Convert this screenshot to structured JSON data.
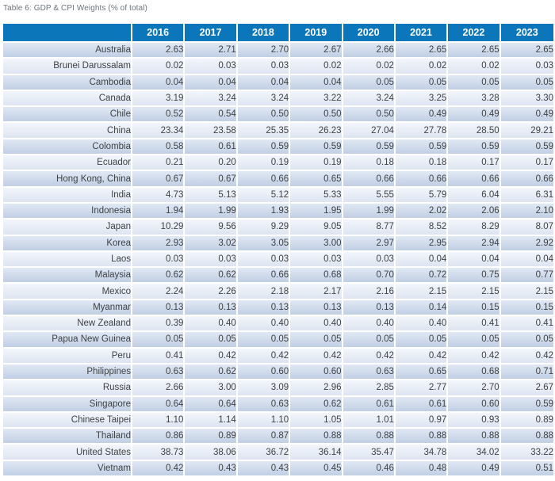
{
  "chart_data": {
    "type": "table",
    "title": "Table 6: GDP & CPI Weights (% of total)",
    "columns": [
      "2016",
      "2017",
      "2018",
      "2019",
      "2020",
      "2021",
      "2022",
      "2023"
    ],
    "rows": [
      {
        "label": "Australia",
        "values": [
          "2.63",
          "2.71",
          "2.70",
          "2.67",
          "2.66",
          "2.65",
          "2.65",
          "2.65"
        ]
      },
      {
        "label": "Brunei Darussalam",
        "values": [
          "0.02",
          "0.03",
          "0.03",
          "0.02",
          "0.02",
          "0.02",
          "0.02",
          "0.03"
        ]
      },
      {
        "label": "Cambodia",
        "values": [
          "0.04",
          "0.04",
          "0.04",
          "0.04",
          "0.05",
          "0.05",
          "0.05",
          "0.05"
        ]
      },
      {
        "label": "Canada",
        "values": [
          "3.19",
          "3.24",
          "3.24",
          "3.22",
          "3.24",
          "3.25",
          "3.28",
          "3.30"
        ]
      },
      {
        "label": "Chile",
        "values": [
          "0.52",
          "0.54",
          "0.50",
          "0.50",
          "0.50",
          "0.49",
          "0.49",
          "0.49"
        ]
      },
      {
        "label": "China",
        "values": [
          "23.34",
          "23.58",
          "25.35",
          "26.23",
          "27.04",
          "27.78",
          "28.50",
          "29.21"
        ]
      },
      {
        "label": "Colombia",
        "values": [
          "0.58",
          "0.61",
          "0.59",
          "0.59",
          "0.59",
          "0.59",
          "0.59",
          "0.59"
        ]
      },
      {
        "label": "Ecuador",
        "values": [
          "0.21",
          "0.20",
          "0.19",
          "0.19",
          "0.18",
          "0.18",
          "0.17",
          "0.17"
        ]
      },
      {
        "label": "Hong Kong, China",
        "values": [
          "0.67",
          "0.67",
          "0.66",
          "0.65",
          "0.66",
          "0.66",
          "0.66",
          "0.66"
        ]
      },
      {
        "label": "India",
        "values": [
          "4.73",
          "5.13",
          "5.12",
          "5.33",
          "5.55",
          "5.79",
          "6.04",
          "6.31"
        ]
      },
      {
        "label": "Indonesia",
        "values": [
          "1.94",
          "1.99",
          "1.93",
          "1.95",
          "1.99",
          "2.02",
          "2.06",
          "2.10"
        ]
      },
      {
        "label": "Japan",
        "values": [
          "10.29",
          "9.56",
          "9.29",
          "9.05",
          "8.77",
          "8.52",
          "8.29",
          "8.07"
        ]
      },
      {
        "label": "Korea",
        "values": [
          "2.93",
          "3.02",
          "3.05",
          "3.00",
          "2.97",
          "2.95",
          "2.94",
          "2.92"
        ]
      },
      {
        "label": "Laos",
        "values": [
          "0.03",
          "0.03",
          "0.03",
          "0.03",
          "0.03",
          "0.04",
          "0.04",
          "0.04"
        ]
      },
      {
        "label": "Malaysia",
        "values": [
          "0.62",
          "0.62",
          "0.66",
          "0.68",
          "0.70",
          "0.72",
          "0.75",
          "0.77"
        ]
      },
      {
        "label": "Mexico",
        "values": [
          "2.24",
          "2.26",
          "2.18",
          "2.17",
          "2.16",
          "2.15",
          "2.15",
          "2.15"
        ]
      },
      {
        "label": "Myanmar",
        "values": [
          "0.13",
          "0.13",
          "0.13",
          "0.13",
          "0.13",
          "0.14",
          "0.15",
          "0.15"
        ]
      },
      {
        "label": "New Zealand",
        "values": [
          "0.39",
          "0.40",
          "0.40",
          "0.40",
          "0.40",
          "0.40",
          "0.41",
          "0.41"
        ]
      },
      {
        "label": "Papua New Guinea",
        "values": [
          "0.05",
          "0.05",
          "0.05",
          "0.05",
          "0.05",
          "0.05",
          "0.05",
          "0.05"
        ]
      },
      {
        "label": "Peru",
        "values": [
          "0.41",
          "0.42",
          "0.42",
          "0.42",
          "0.42",
          "0.42",
          "0.42",
          "0.42"
        ]
      },
      {
        "label": "Philippines",
        "values": [
          "0.63",
          "0.62",
          "0.60",
          "0.60",
          "0.63",
          "0.65",
          "0.68",
          "0.71"
        ]
      },
      {
        "label": "Russia",
        "values": [
          "2.66",
          "3.00",
          "3.09",
          "2.96",
          "2.85",
          "2.77",
          "2.70",
          "2.67"
        ]
      },
      {
        "label": "Singapore",
        "values": [
          "0.64",
          "0.64",
          "0.63",
          "0.62",
          "0.61",
          "0.61",
          "0.60",
          "0.59"
        ]
      },
      {
        "label": "Chinese Taipei",
        "values": [
          "1.10",
          "1.14",
          "1.10",
          "1.05",
          "1.01",
          "0.97",
          "0.93",
          "0.89"
        ]
      },
      {
        "label": "Thailand",
        "values": [
          "0.86",
          "0.89",
          "0.87",
          "0.88",
          "0.88",
          "0.88",
          "0.88",
          "0.88"
        ]
      },
      {
        "label": "United States",
        "values": [
          "38.73",
          "38.06",
          "36.72",
          "36.14",
          "35.47",
          "34.78",
          "34.02",
          "33.22"
        ]
      },
      {
        "label": "Vietnam",
        "values": [
          "0.42",
          "0.43",
          "0.43",
          "0.45",
          "0.46",
          "0.48",
          "0.49",
          "0.51"
        ]
      }
    ]
  },
  "colors": {
    "header_bg": "#0c76bb",
    "header_text": "#ffffff",
    "row_stripe_dark": "#cddaed",
    "row_stripe_light": "#e8eef8",
    "cell_text": "#3f4245",
    "caption_text": "#6e757c"
  }
}
